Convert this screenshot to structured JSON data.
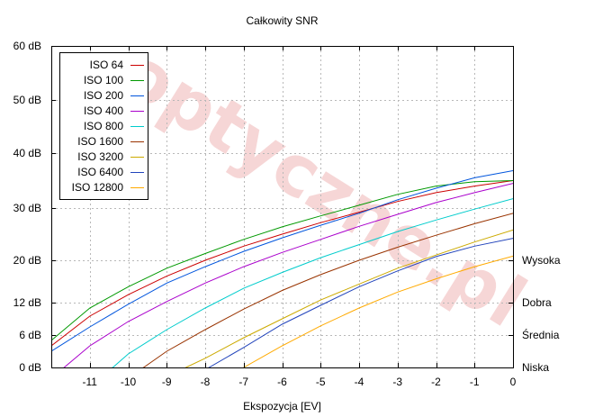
{
  "chart_data": {
    "type": "line",
    "title": "Całkowity SNR",
    "xlabel": "Ekspozycja [EV]",
    "ylabel": "",
    "xlim": [
      -12,
      0
    ],
    "ylim": [
      0,
      60
    ],
    "y_scale": "nonlinear-snr",
    "x_ticks": [
      {
        "v": -11,
        "label": "-11"
      },
      {
        "v": -10,
        "label": "-10"
      },
      {
        "v": -9,
        "label": "-9"
      },
      {
        "v": -8,
        "label": "-8"
      },
      {
        "v": -7,
        "label": "-7"
      },
      {
        "v": -6,
        "label": "-6"
      },
      {
        "v": -5,
        "label": "-5"
      },
      {
        "v": -4,
        "label": "-4"
      },
      {
        "v": -3,
        "label": "-3"
      },
      {
        "v": -2,
        "label": "-2"
      },
      {
        "v": -1,
        "label": "-1"
      },
      {
        "v": 0,
        "label": "0"
      }
    ],
    "y_ticks": [
      {
        "v": 0,
        "label": "0 dB"
      },
      {
        "v": 6,
        "label": "6 dB"
      },
      {
        "v": 12,
        "label": "12 dB"
      },
      {
        "v": 20,
        "label": "20 dB"
      },
      {
        "v": 30,
        "label": "30 dB"
      },
      {
        "v": 40,
        "label": "40 dB"
      },
      {
        "v": 50,
        "label": "50 dB"
      },
      {
        "v": 60,
        "label": "60 dB"
      }
    ],
    "right_labels": [
      {
        "v": 20,
        "label": "Wysoka"
      },
      {
        "v": 12,
        "label": "Dobra"
      },
      {
        "v": 6,
        "label": "Średnia"
      },
      {
        "v": 0,
        "label": "Niska"
      }
    ],
    "grid": true,
    "legend_position": "top-left",
    "watermark": "optyczne.pl",
    "series": [
      {
        "name": "ISO 64",
        "color": "#cc0000",
        "points": [
          [
            -12,
            4
          ],
          [
            -11,
            9.5
          ],
          [
            -10,
            13.5
          ],
          [
            -9,
            17
          ],
          [
            -8,
            20
          ],
          [
            -7,
            22.7
          ],
          [
            -6,
            25
          ],
          [
            -5,
            27.2
          ],
          [
            -4,
            29.2
          ],
          [
            -3,
            31.2
          ],
          [
            -2,
            32.8
          ],
          [
            -1,
            34
          ],
          [
            0,
            35
          ]
        ]
      },
      {
        "name": "ISO 100",
        "color": "#009900",
        "points": [
          [
            -12,
            5
          ],
          [
            -11,
            11
          ],
          [
            -10,
            15
          ],
          [
            -9,
            18.5
          ],
          [
            -8,
            21.3
          ],
          [
            -7,
            24
          ],
          [
            -6,
            26.4
          ],
          [
            -5,
            28.5
          ],
          [
            -4,
            30.5
          ],
          [
            -3,
            32.5
          ],
          [
            -2,
            34
          ],
          [
            -1,
            34.8
          ],
          [
            0,
            35
          ]
        ]
      },
      {
        "name": "ISO 200",
        "color": "#0055dd",
        "points": [
          [
            -12,
            3
          ],
          [
            -11,
            7.5
          ],
          [
            -10,
            11.7
          ],
          [
            -9,
            15.7
          ],
          [
            -8,
            18.8
          ],
          [
            -7,
            21.7
          ],
          [
            -6,
            24.3
          ],
          [
            -5,
            26.7
          ],
          [
            -4,
            29
          ],
          [
            -3,
            31.5
          ],
          [
            -2,
            33.6
          ],
          [
            -1,
            35.5
          ],
          [
            0,
            36.8
          ]
        ]
      },
      {
        "name": "ISO 400",
        "color": "#aa00cc",
        "points": [
          [
            -12,
            -2
          ],
          [
            -11,
            4
          ],
          [
            -10,
            8.5
          ],
          [
            -9,
            12.2
          ],
          [
            -8,
            15.7
          ],
          [
            -7,
            18.8
          ],
          [
            -6,
            21.5
          ],
          [
            -5,
            24
          ],
          [
            -4,
            26.5
          ],
          [
            -3,
            28.8
          ],
          [
            -2,
            31
          ],
          [
            -1,
            32.8
          ],
          [
            0,
            34.5
          ]
        ]
      },
      {
        "name": "ISO 800",
        "color": "#00cccc",
        "points": [
          [
            -11,
            -1.5
          ],
          [
            -10.4,
            0
          ],
          [
            -10,
            2.5
          ],
          [
            -9,
            7
          ],
          [
            -8,
            11
          ],
          [
            -7,
            14.7
          ],
          [
            -6,
            17.7
          ],
          [
            -5,
            20.5
          ],
          [
            -4,
            23
          ],
          [
            -3,
            25.5
          ],
          [
            -2,
            27.7
          ],
          [
            -1,
            29.8
          ],
          [
            0,
            31.7
          ]
        ]
      },
      {
        "name": "ISO 1600",
        "color": "#993300",
        "points": [
          [
            -10,
            -1.5
          ],
          [
            -9.6,
            0
          ],
          [
            -9,
            3
          ],
          [
            -8,
            7
          ],
          [
            -7,
            10.8
          ],
          [
            -6,
            14.3
          ],
          [
            -5,
            17.3
          ],
          [
            -4,
            20
          ],
          [
            -3,
            22.5
          ],
          [
            -2,
            24.8
          ],
          [
            -1,
            27
          ],
          [
            0,
            29
          ]
        ]
      },
      {
        "name": "ISO 3200",
        "color": "#ccaa00",
        "points": [
          [
            -9,
            -2
          ],
          [
            -8.5,
            0
          ],
          [
            -8,
            1.7
          ],
          [
            -7,
            5.5
          ],
          [
            -6,
            9
          ],
          [
            -5,
            12.5
          ],
          [
            -4,
            15.5
          ],
          [
            -3,
            18.5
          ],
          [
            -2,
            21
          ],
          [
            -1,
            23.5
          ],
          [
            0,
            25.8
          ]
        ]
      },
      {
        "name": "ISO 6400",
        "color": "#2244bb",
        "points": [
          [
            -8.3,
            -1.5
          ],
          [
            -7.9,
            0
          ],
          [
            -7,
            3.7
          ],
          [
            -6,
            8
          ],
          [
            -5,
            11.5
          ],
          [
            -4,
            15
          ],
          [
            -3,
            18
          ],
          [
            -2,
            20.7
          ],
          [
            -1,
            22.7
          ],
          [
            0,
            24.2
          ]
        ]
      },
      {
        "name": "ISO 12800",
        "color": "#ffaa00",
        "points": [
          [
            -7.2,
            -1
          ],
          [
            -7,
            0
          ],
          [
            -6,
            4
          ],
          [
            -5,
            7.7
          ],
          [
            -4,
            11
          ],
          [
            -3,
            14
          ],
          [
            -2,
            16.5
          ],
          [
            -1,
            18.8
          ],
          [
            0,
            20.8
          ]
        ]
      }
    ]
  }
}
